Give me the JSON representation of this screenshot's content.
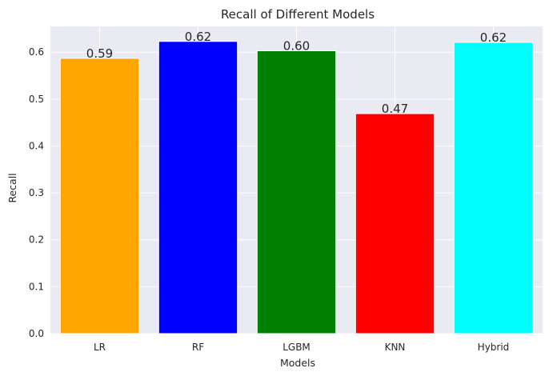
{
  "chart_data": {
    "type": "bar",
    "title": "Recall of Different Models",
    "xlabel": "Models",
    "ylabel": "Recall",
    "categories": [
      "LR",
      "RF",
      "LGBM",
      "KNN",
      "Hybrid"
    ],
    "values": [
      0.587,
      0.623,
      0.603,
      0.469,
      0.621
    ],
    "value_labels": [
      "0.59",
      "0.62",
      "0.60",
      "0.47",
      "0.62"
    ],
    "colors": [
      "#FFA500",
      "#0000FF",
      "#008000",
      "#FF0000",
      "#00FFFF"
    ],
    "ylim": [
      0,
      0.655
    ],
    "yticks": [
      0.0,
      0.1,
      0.2,
      0.3,
      0.4,
      0.5,
      0.6
    ],
    "ytick_labels": [
      "0.0",
      "0.1",
      "0.2",
      "0.3",
      "0.4",
      "0.5",
      "0.6"
    ],
    "grid": true,
    "background": "#EAEAF2"
  }
}
